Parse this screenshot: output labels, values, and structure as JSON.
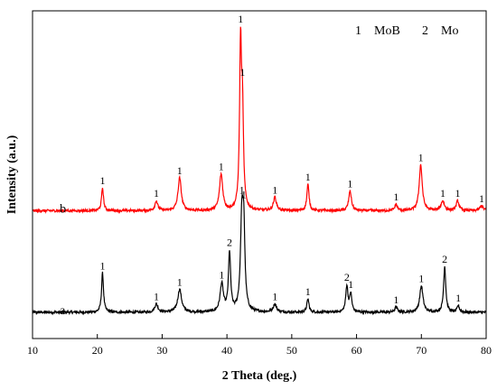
{
  "chart_data": {
    "type": "line",
    "xlabel": "2 Theta (deg.)",
    "ylabel": "Intensity (a.u.)",
    "xlim": [
      10,
      80
    ],
    "x_ticks": [
      "10",
      "20",
      "30",
      "40",
      "50",
      "60",
      "70",
      "80"
    ],
    "legend": [
      {
        "marker": "1",
        "phase": "MoB"
      },
      {
        "marker": "2",
        "phase": "Mo"
      }
    ],
    "legend_position": "top-right",
    "grid": false,
    "series": [
      {
        "label": "a",
        "color": "#000000",
        "baseline": 0.08,
        "noise": 0.008,
        "peaks": [
          {
            "x": 20.8,
            "h": 0.12,
            "w": 0.18,
            "label": "1"
          },
          {
            "x": 29.1,
            "h": 0.025,
            "w": 0.3,
            "label": "1"
          },
          {
            "x": 32.7,
            "h": 0.07,
            "w": 0.35,
            "label": "1"
          },
          {
            "x": 39.2,
            "h": 0.085,
            "w": 0.3,
            "label": "1"
          },
          {
            "x": 40.4,
            "h": 0.18,
            "w": 0.2,
            "label": "2"
          },
          {
            "x": 42.3,
            "h": 0.28,
            "w": 0.25,
            "label": "1"
          },
          {
            "x": 42.6,
            "h": 0.22,
            "w": 0.2,
            "label": "1"
          },
          {
            "x": 47.4,
            "h": 0.025,
            "w": 0.3,
            "label": "1"
          },
          {
            "x": 52.5,
            "h": 0.04,
            "w": 0.2,
            "label": "1"
          },
          {
            "x": 58.5,
            "h": 0.08,
            "w": 0.2,
            "label": "2"
          },
          {
            "x": 59.1,
            "h": 0.055,
            "w": 0.2,
            "label": "1"
          },
          {
            "x": 66.1,
            "h": 0.015,
            "w": 0.25,
            "label": "1"
          },
          {
            "x": 70.0,
            "h": 0.08,
            "w": 0.3,
            "label": "1"
          },
          {
            "x": 73.6,
            "h": 0.14,
            "w": 0.2,
            "label": "2"
          },
          {
            "x": 75.7,
            "h": 0.02,
            "w": 0.2,
            "label": "1"
          }
        ]
      },
      {
        "label": "b",
        "color": "#ff0000",
        "baseline": 0.39,
        "noise": 0.008,
        "peaks": [
          {
            "x": 20.8,
            "h": 0.07,
            "w": 0.18,
            "label": "1"
          },
          {
            "x": 29.1,
            "h": 0.03,
            "w": 0.25,
            "label": "1"
          },
          {
            "x": 32.7,
            "h": 0.1,
            "w": 0.3,
            "label": "1"
          },
          {
            "x": 39.1,
            "h": 0.11,
            "w": 0.3,
            "label": "1"
          },
          {
            "x": 42.1,
            "h": 0.49,
            "w": 0.18,
            "label": "1"
          },
          {
            "x": 42.4,
            "h": 0.27,
            "w": 0.18,
            "label": "1"
          },
          {
            "x": 47.4,
            "h": 0.04,
            "w": 0.28,
            "label": "1"
          },
          {
            "x": 52.5,
            "h": 0.08,
            "w": 0.2,
            "label": "1"
          },
          {
            "x": 59.0,
            "h": 0.06,
            "w": 0.25,
            "label": "1"
          },
          {
            "x": 66.1,
            "h": 0.02,
            "w": 0.22,
            "label": "1"
          },
          {
            "x": 69.9,
            "h": 0.14,
            "w": 0.28,
            "label": "1"
          },
          {
            "x": 73.3,
            "h": 0.03,
            "w": 0.3,
            "label": "1"
          },
          {
            "x": 75.6,
            "h": 0.03,
            "w": 0.25,
            "label": "1"
          },
          {
            "x": 79.3,
            "h": 0.015,
            "w": 0.3,
            "label": "1"
          }
        ]
      }
    ]
  }
}
